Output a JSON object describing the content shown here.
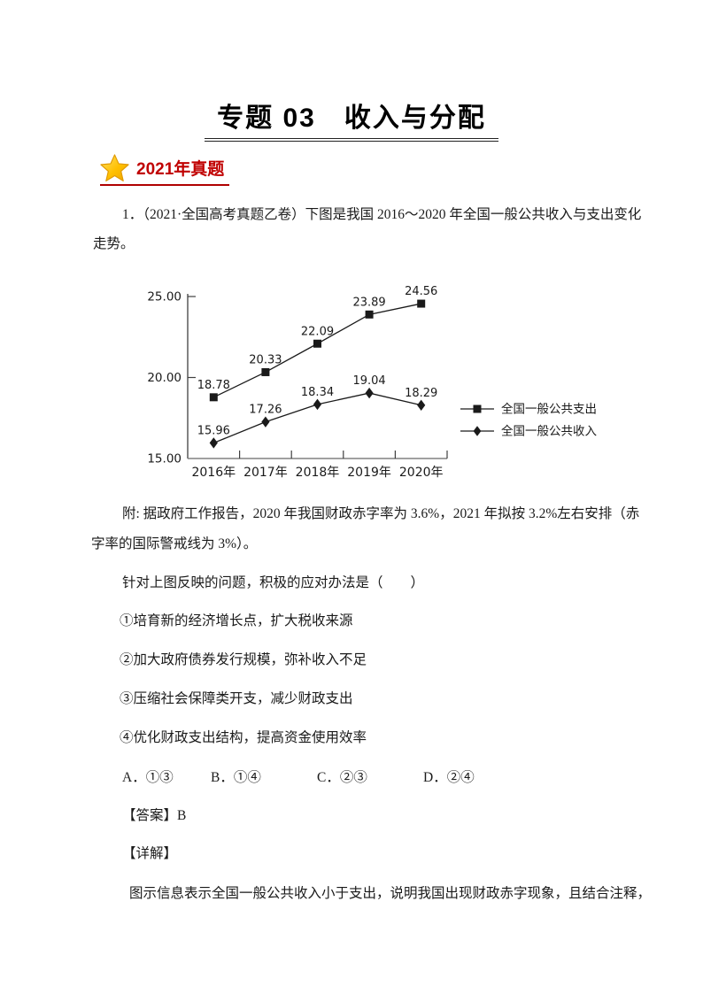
{
  "colors": {
    "badge_red": "#c00000",
    "star_fill": "#ffc000",
    "star_edge": "#e09900",
    "chart_line": "#1a1a1a",
    "axis_gray": "#808080"
  },
  "header": {
    "title": "专题 03　收入与分配"
  },
  "badge": {
    "star_icon": "star-icon",
    "label": "2021年真题"
  },
  "question": {
    "intro_line1": "1．（2021·全国高考真题乙卷）下图是我国 2016～2020 年全国一般公共收入与支出变化",
    "intro_line2": "走势。",
    "note_line1": "附: 据政府工作报告，2020 年我国财政赤字率为 3.6%，2021 年拟按 3.2%左右安排（赤",
    "note_line2": "字率的国际警戒线为 3%）。",
    "stem": "针对上图反映的问题，积极的应对办法是（　　）",
    "statements": [
      "①培育新的经济增长点，扩大税收来源",
      "②加大政府债券发行规模，弥补收入不足",
      "③压缩社会保障类开支，减少财政支出",
      "④优化财政支出结构，提高资金使用效率"
    ],
    "options": [
      "A．①③",
      "B．①④",
      "C．②③",
      "D．②④"
    ]
  },
  "answer": {
    "answer_label": "【答案】B",
    "detail_label": "【详解】",
    "explanation_line1": "图示信息表示全国一般公共收入小于支出，说明我国出现财政赤字现象，且结合注释，"
  },
  "chart_data": {
    "type": "line",
    "categories": [
      "2016年",
      "2017年",
      "2018年",
      "2019年",
      "2020年"
    ],
    "series": [
      {
        "name": "全国一般公共支出",
        "marker": "square",
        "values": [
          18.78,
          20.33,
          22.09,
          23.89,
          24.56
        ]
      },
      {
        "name": "全国一般公共收入",
        "marker": "diamond",
        "values": [
          15.96,
          17.26,
          18.34,
          19.04,
          18.29
        ]
      }
    ],
    "title": "",
    "xlabel": "",
    "ylabel": "",
    "ylim": [
      15,
      25
    ],
    "yticks": [
      15,
      20,
      25
    ],
    "ytick_labels": [
      "15.00",
      "20.00",
      "25.00"
    ],
    "grid": false,
    "legend_position": "right"
  }
}
